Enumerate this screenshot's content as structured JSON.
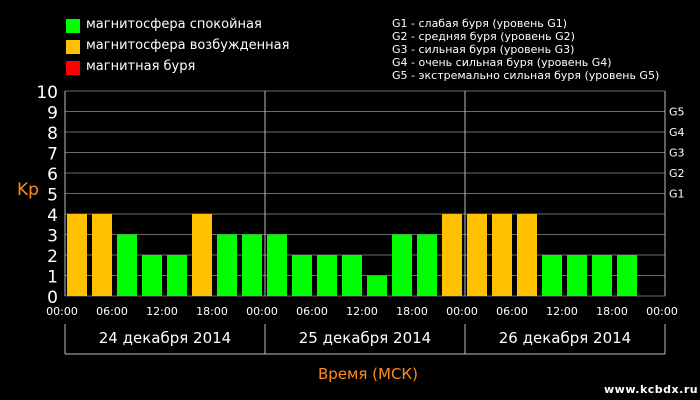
{
  "legend": [
    {
      "label": "магнитосфера спокойная",
      "color": "#00ff00"
    },
    {
      "label": "магнитосфера возбужденная",
      "color": "#ffc000"
    },
    {
      "label": "магнитная буря",
      "color": "#ff0000"
    }
  ],
  "storm_levels": [
    "G1 - слабая буря (уровень G1)",
    "G2 - средняя буря (уровень G2)",
    "G3 - сильная буря (уровень G3)",
    "G4 - очень сильная буря (уровень G4)",
    "G5 - экстремально сильная буря (уровень G5)"
  ],
  "watermark": "www.kcbdx.ru",
  "chart_data": {
    "type": "bar",
    "ylabel": "Kp",
    "xlabel": "Время (МСК)",
    "ylim": [
      0,
      10
    ],
    "yticks": [
      "0",
      "1",
      "2",
      "3",
      "4",
      "5",
      "6",
      "7",
      "8",
      "9",
      "10"
    ],
    "right_ticks": [
      {
        "label": "G1",
        "value": 5
      },
      {
        "label": "G2",
        "value": 6
      },
      {
        "label": "G3",
        "value": 7
      },
      {
        "label": "G4",
        "value": 8
      },
      {
        "label": "G5",
        "value": 9
      }
    ],
    "xticks": [
      "00:00",
      "06:00",
      "12:00",
      "18:00",
      "00:00",
      "06:00",
      "12:00",
      "18:00",
      "00:00",
      "06:00",
      "12:00",
      "18:00",
      "00:00"
    ],
    "days": [
      "24 декабря 2014",
      "25 декабря 2014",
      "26 декабря 2014"
    ],
    "grid": true,
    "bar_colors": {
      "quiet": "#00ff00",
      "active": "#ffc000",
      "storm": "#ff0000"
    },
    "values": [
      4,
      4,
      3,
      2,
      2,
      4,
      3,
      3,
      3,
      2,
      2,
      2,
      1,
      3,
      3,
      4,
      4,
      4,
      4,
      2,
      2,
      2,
      2
    ]
  }
}
